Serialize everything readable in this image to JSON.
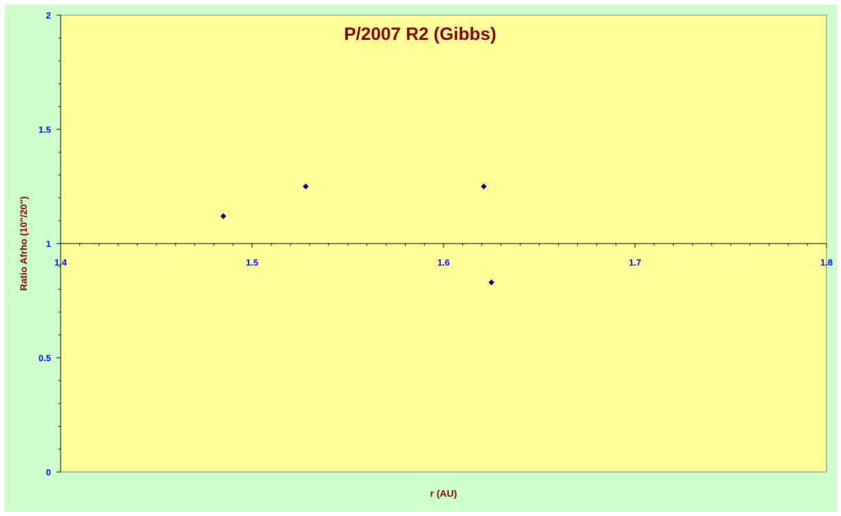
{
  "chart_data": {
    "type": "scatter",
    "title": "P/2007 R2 (Gibbs)",
    "xlabel": "r (AU)",
    "ylabel": "Ratio Afrho (10\"/20\")",
    "xlim": [
      1.4,
      1.8
    ],
    "ylim": [
      0,
      2
    ],
    "x_ticks": [
      "1.4",
      "1.5",
      "1.6",
      "1.7",
      "1.8"
    ],
    "y_ticks": [
      "0",
      "0.5",
      "1",
      "1.5",
      "2"
    ],
    "x_axis_crosses_at_y": 1,
    "grid": false,
    "legend": "none",
    "points": [
      {
        "x": 1.485,
        "y": 1.12
      },
      {
        "x": 1.528,
        "y": 1.25
      },
      {
        "x": 1.621,
        "y": 1.25
      },
      {
        "x": 1.625,
        "y": 0.83
      }
    ]
  },
  "colors": {
    "frame_background": "#ccffcc",
    "plot_background": "#ffff99",
    "title": "#800000",
    "axis_title": "#800000",
    "tick_label": "#0000ff",
    "marker": "#000080",
    "axis_line": "#000000",
    "plot_border": "#808080"
  }
}
